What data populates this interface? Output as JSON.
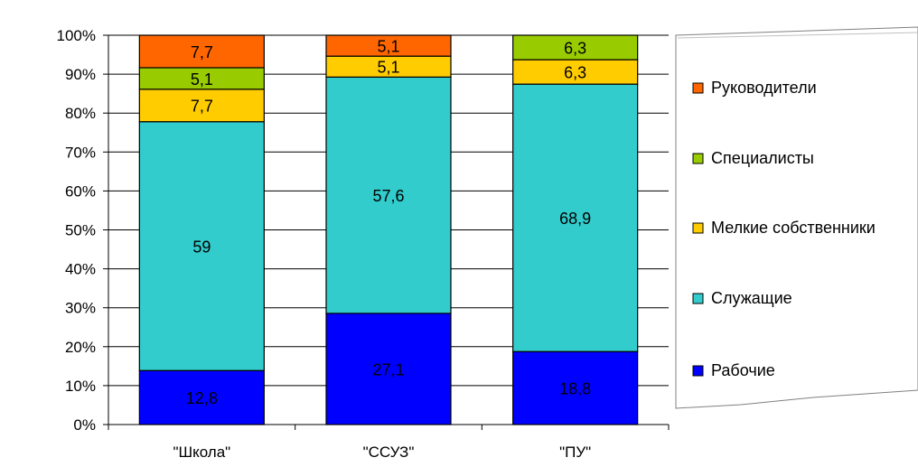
{
  "chart_data": {
    "type": "bar",
    "stacked": "percent",
    "categories": [
      "\"Школа\"",
      "\"ССУЗ\"",
      "\"ПУ\""
    ],
    "series": [
      {
        "name": "Рабочие",
        "color": "#0000FF",
        "values": [
          12.8,
          27.1,
          18.8
        ]
      },
      {
        "name": "Служащие",
        "color": "#33CCCC",
        "values": [
          59,
          57.6,
          68.9
        ]
      },
      {
        "name": "Мелкие собственники",
        "color": "#FFCC00",
        "values": [
          7.7,
          5.1,
          6.3
        ]
      },
      {
        "name": "Специалисты",
        "color": "#99CC00",
        "values": [
          5.1,
          0,
          6.3
        ]
      },
      {
        "name": "Руководители",
        "color": "#FF6600",
        "values": [
          7.7,
          5.1,
          0
        ]
      }
    ],
    "data_labels": [
      [
        "12,8",
        "59",
        "7,7",
        "5,1",
        "7,7"
      ],
      [
        "27,1",
        "57,6",
        "5,1",
        "",
        "5,1"
      ],
      [
        "18,8",
        "68,9",
        "6,3",
        "6,3",
        ""
      ]
    ],
    "y_ticks": [
      "0%",
      "10%",
      "20%",
      "30%",
      "40%",
      "50%",
      "60%",
      "70%",
      "80%",
      "90%",
      "100%"
    ],
    "ylim": [
      0,
      100
    ],
    "grid": true,
    "legend_position": "right",
    "legend_order": [
      "Руководители",
      "Специалисты",
      "Мелкие собственники",
      "Служащие",
      "Рабочие"
    ],
    "title": "",
    "xlabel": "",
    "ylabel": ""
  }
}
